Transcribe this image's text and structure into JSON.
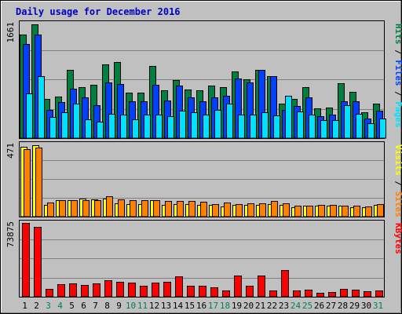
{
  "chart_data": {
    "type": "bar",
    "title": "Daily usage for December 2016",
    "categories": [
      "1",
      "2",
      "3",
      "4",
      "5",
      "6",
      "7",
      "8",
      "9",
      "10",
      "11",
      "12",
      "13",
      "14",
      "15",
      "16",
      "17",
      "18",
      "19",
      "20",
      "21",
      "22",
      "23",
      "24",
      "25",
      "26",
      "27",
      "28",
      "29",
      "30",
      "31"
    ],
    "weekend_days": [
      "3",
      "4",
      "10",
      "11",
      "17",
      "18",
      "24",
      "25",
      "31"
    ],
    "panels": [
      {
        "id": "requests",
        "max_label": "1661",
        "ylim": [
          0,
          1661
        ],
        "series": [
          {
            "name": "Hits",
            "color": "#008040",
            "values": [
              1500,
              1650,
              565,
              600,
              995,
              740,
              770,
              1070,
              1100,
              660,
              660,
              1045,
              695,
              845,
              710,
              695,
              760,
              740,
              970,
              855,
              985,
              900,
              495,
              565,
              745,
              435,
              445,
              800,
              675,
              375,
              495
            ]
          },
          {
            "name": "Files",
            "color": "#0040ff",
            "values": [
              1360,
              1500,
              415,
              520,
              720,
              590,
              475,
              810,
              780,
              540,
              540,
              775,
              545,
              760,
              595,
              540,
              590,
              620,
              870,
              810,
              990,
              900,
              405,
              465,
              590,
              315,
              340,
              540,
              540,
              280,
              400
            ]
          },
          {
            "name": "Pages",
            "color": "#00e0ff",
            "values": [
              650,
              895,
              305,
              375,
              495,
              270,
              240,
              350,
              345,
              270,
              345,
              345,
              315,
              395,
              370,
              345,
              415,
              500,
              345,
              345,
              370,
              335,
              610,
              385,
              345,
              260,
              260,
              480,
              355,
              220,
              280
            ]
          }
        ],
        "legend": [
          "Pages",
          "Files",
          "Hits"
        ]
      },
      {
        "id": "visitors",
        "max_label": "471",
        "ylim": [
          0,
          471
        ],
        "series": [
          {
            "name": "Visits",
            "color": "#ffff00",
            "values": [
              455,
              465,
              75,
              105,
              105,
              120,
              115,
              120,
              85,
              80,
              80,
              110,
              75,
              80,
              80,
              75,
              75,
              65,
              75,
              75,
              75,
              80,
              75,
              60,
              70,
              70,
              70,
              70,
              60,
              60,
              75
            ]
          },
          {
            "name": "Sites",
            "color": "#ff8000",
            "values": [
              440,
              450,
              90,
              105,
              105,
              105,
              110,
              135,
              115,
              105,
              105,
              110,
              100,
              100,
              100,
              95,
              80,
              90,
              80,
              85,
              85,
              100,
              85,
              70,
              70,
              75,
              75,
              70,
              70,
              65,
              80
            ]
          }
        ],
        "legend": [
          "Sites",
          "Visits"
        ]
      },
      {
        "id": "kbytes",
        "max_label": "73875",
        "ylim": [
          0,
          73875
        ],
        "series": [
          {
            "name": "KBytes",
            "color": "#ff0000",
            "values": [
              73875,
              70000,
              8000,
              12600,
              13200,
              11700,
              13100,
              16800,
              14900,
              13800,
              11000,
              14000,
              14900,
              20800,
              10900,
              11000,
              9800,
              6600,
              21300,
              10800,
              21000,
              6500,
              27000,
              6400,
              7000,
              4300,
              4900,
              7500,
              6900,
              5200,
              6400
            ]
          }
        ],
        "legend": [
          "KBytes"
        ]
      }
    ]
  }
}
